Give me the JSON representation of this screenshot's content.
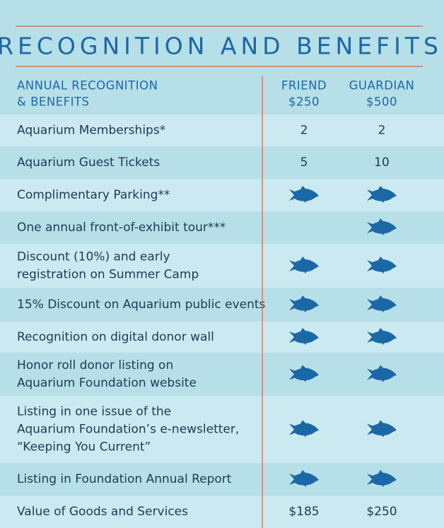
{
  "header": {
    "title": "RECOGNITION AND BENEFITS"
  },
  "table": {
    "columns": [
      {
        "lines": [
          "ANNUAL RECOGNITION",
          "& BENEFITS"
        ]
      },
      {
        "lines": [
          "FRIEND",
          "$250"
        ]
      },
      {
        "lines": [
          "GUARDIAN",
          "$500"
        ]
      }
    ],
    "rows": [
      {
        "lines": [
          "Aquarium Memberships*"
        ],
        "cells": [
          "2",
          "2"
        ]
      },
      {
        "lines": [
          "Aquarium Guest Tickets"
        ],
        "cells": [
          "5",
          "10"
        ]
      },
      {
        "lines": [
          "Complimentary Parking**"
        ],
        "cells": [
          true,
          true
        ]
      },
      {
        "lines": [
          "One annual front-of-exhibit tour***"
        ],
        "cells": [
          null,
          true
        ]
      },
      {
        "lines": [
          "Discount (10%) and early",
          "registration on Summer Camp"
        ],
        "cells": [
          true,
          true
        ]
      },
      {
        "lines": [
          "15% Discount on Aquarium public events"
        ],
        "cells": [
          true,
          true
        ]
      },
      {
        "lines": [
          "Recognition on digital donor wall"
        ],
        "cells": [
          true,
          true
        ]
      },
      {
        "lines": [
          "Honor roll donor listing on",
          "Aquarium Foundation website"
        ],
        "cells": [
          true,
          true
        ]
      },
      {
        "lines": [
          "Listing in one issue of the",
          "Aquarium Foundation’s e-newsletter,",
          "“Keeping You Current”"
        ],
        "cells": [
          true,
          true
        ]
      },
      {
        "lines": [
          "Listing in Foundation Annual Report"
        ],
        "cells": [
          true,
          true
        ]
      },
      {
        "lines": [
          "Value of Goods and Services"
        ],
        "cells": [
          "$185",
          "$250"
        ]
      }
    ]
  }
}
